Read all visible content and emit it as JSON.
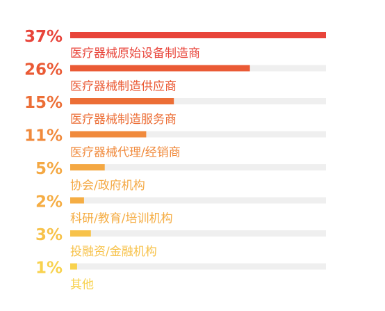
{
  "chart_data": {
    "type": "bar",
    "orientation": "horizontal",
    "title": "",
    "xlabel": "",
    "ylabel": "",
    "xlim": [
      0,
      37
    ],
    "grid": false,
    "legend": "none",
    "track_color": "#efefef",
    "categories": [
      "医疗器械原始设备制造商",
      "医疗器械制造供应商",
      "医疗器械制造服务商",
      "医疗器械代理/经销商",
      "协会/政府机构",
      "科研/教育/培训机构",
      "投融资/金融机构",
      "其他"
    ],
    "values": [
      37,
      26,
      15,
      11,
      5,
      2,
      3,
      1
    ],
    "data_labels": [
      "37%",
      "26%",
      "15%",
      "11%",
      "5%",
      "2%",
      "3%",
      "1%"
    ],
    "bar_colors": [
      "#e8443a",
      "#ea5a35",
      "#ec6e36",
      "#f08a3c",
      "#f4a843",
      "#f5ad44",
      "#f7c24a",
      "#f8d24e"
    ],
    "label_colors": [
      "#e8443a",
      "#ea5a35",
      "#ec6e36",
      "#f08a3c",
      "#f4a843",
      "#f5ad44",
      "#f7c24a",
      "#f8d24e"
    ]
  }
}
